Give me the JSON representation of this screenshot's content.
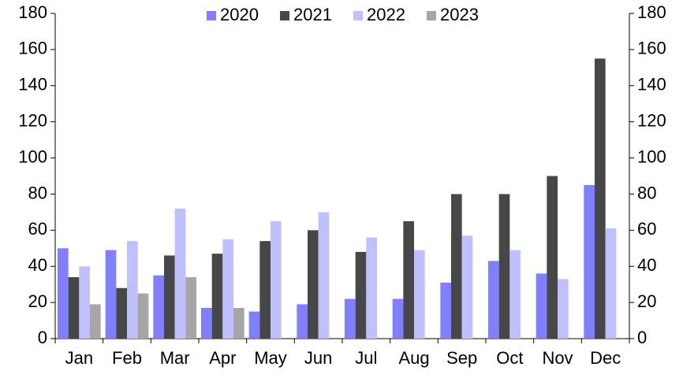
{
  "chart_data": {
    "type": "bar",
    "categories": [
      "Jan",
      "Feb",
      "Mar",
      "Apr",
      "May",
      "Jun",
      "Jul",
      "Aug",
      "Sep",
      "Oct",
      "Nov",
      "Dec"
    ],
    "series": [
      {
        "name": "2020",
        "color": "#7f7fff",
        "values": [
          50,
          49,
          35,
          17,
          15,
          19,
          22,
          22,
          31,
          43,
          36,
          85
        ]
      },
      {
        "name": "2021",
        "color": "#474747",
        "values": [
          34,
          28,
          46,
          47,
          54,
          60,
          48,
          65,
          80,
          80,
          90,
          155
        ]
      },
      {
        "name": "2022",
        "color": "#c0c0ff",
        "values": [
          40,
          54,
          72,
          55,
          65,
          70,
          56,
          49,
          57,
          49,
          33,
          61
        ]
      },
      {
        "name": "2023",
        "color": "#a6a6a6",
        "values": [
          19,
          25,
          34,
          17,
          null,
          null,
          null,
          null,
          null,
          null,
          null,
          null
        ]
      }
    ],
    "ylim": [
      0,
      180
    ],
    "yticks": [
      0,
      20,
      40,
      60,
      80,
      100,
      120,
      140,
      160,
      180
    ],
    "y2lim": [
      0,
      180
    ],
    "y2ticks": [
      0,
      20,
      40,
      60,
      80,
      100,
      120,
      140,
      160,
      180
    ],
    "legend": "top"
  }
}
